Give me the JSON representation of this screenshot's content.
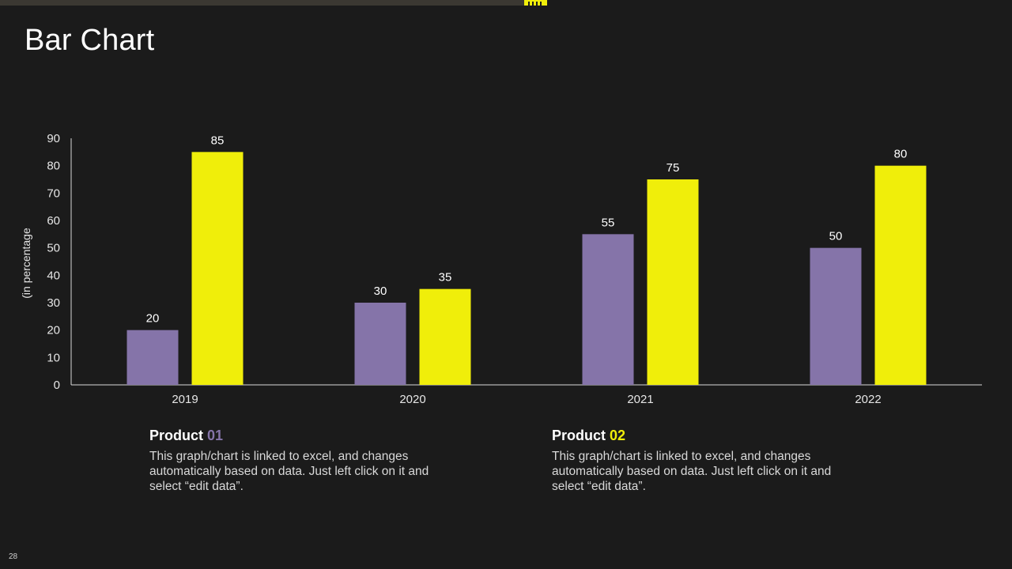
{
  "slide": {
    "title": "Bar Chart",
    "page_number": "28"
  },
  "colors": {
    "background": "#1b1b1b",
    "product01": "#8574a9",
    "product02": "#f0ee0a",
    "axis": "#d9d9d9",
    "text": "#ffffff"
  },
  "chart_data": {
    "type": "bar",
    "categories": [
      "2019",
      "2020",
      "2021",
      "2022"
    ],
    "series": [
      {
        "name": "Product 01",
        "values": [
          20,
          30,
          55,
          50
        ]
      },
      {
        "name": "Product 02",
        "values": [
          85,
          35,
          75,
          80
        ]
      }
    ],
    "ylabel": "(in percentage",
    "ylim": [
      0,
      90
    ],
    "yticks": [
      0,
      10,
      20,
      30,
      40,
      50,
      60,
      70,
      80,
      90
    ],
    "grid": false,
    "data_labels": true
  },
  "legend": [
    {
      "word": "Product",
      "number": "01",
      "description": "This graph/chart is linked to excel, and changes automatically based on data. Just left click on it and select “edit data”."
    },
    {
      "word": "Product",
      "number": "02",
      "description": "This graph/chart is linked to excel, and changes automatically based on data. Just left click on it and select “edit data”."
    }
  ]
}
